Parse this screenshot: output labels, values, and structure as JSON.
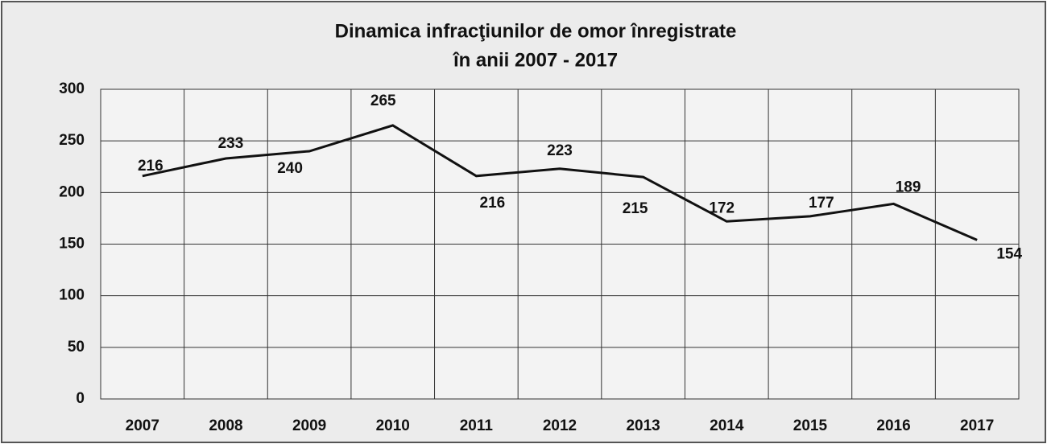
{
  "chart_data": {
    "type": "line",
    "title": [
      "Dinamica infracţiunilor de omor înregistrate",
      "în anii 2007 - 2017"
    ],
    "categories": [
      "2007",
      "2008",
      "2009",
      "2010",
      "2011",
      "2012",
      "2013",
      "2014",
      "2015",
      "2016",
      "2017"
    ],
    "values": [
      216,
      233,
      240,
      265,
      216,
      223,
      215,
      172,
      177,
      189,
      154
    ],
    "color": "#111111",
    "ylim": [
      0,
      300
    ],
    "yticks": [
      0,
      50,
      100,
      150,
      200,
      250,
      300
    ],
    "grid": true
  }
}
